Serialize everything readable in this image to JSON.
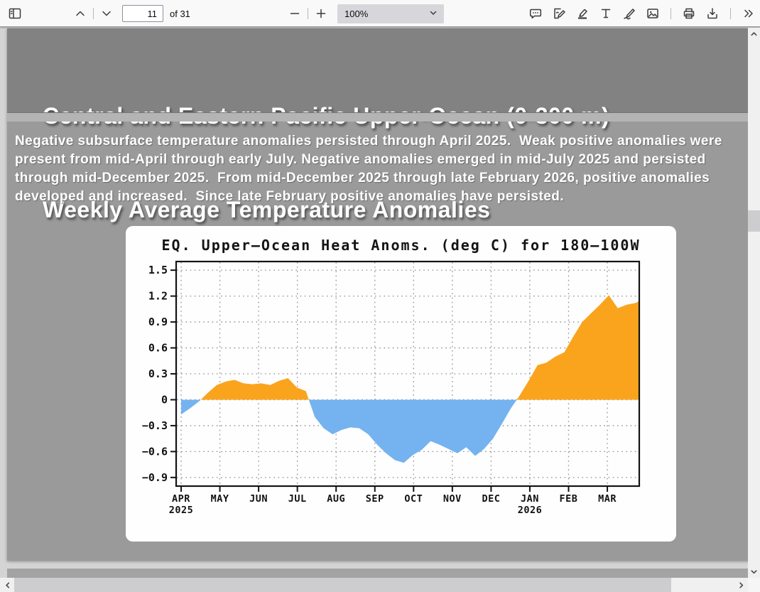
{
  "toolbar": {
    "page_input_value": "11",
    "page_count_label": "of 31",
    "zoom_value": "100%"
  },
  "slide": {
    "title_line1": "Central and Eastern Pacific Upper-Ocean (0-300 m)",
    "title_line2": "Weekly Average Temperature Anomalies",
    "paragraph_lines": [
      "Negative subsurface temperature anomalies persisted through April 2025.  Weak positive anomalies were",
      "present from mid-April through early July. Negative anomalies emerged in mid-July 2025 and persisted",
      "through mid-December 2025.  From mid-December 2025 through late February 2026, positive anomalies",
      "developed and increased.  Since late February positive anomalies have persisted."
    ]
  },
  "chart_data": {
    "type": "area",
    "title": "EQ. Upper–Ocean Heat Anoms. (deg C) for 180–100W",
    "xlabel": "",
    "ylabel": "deg C",
    "ylim": [
      -1.0,
      1.6
    ],
    "grid": "dotted",
    "positive_color": "#FAA41E",
    "negative_color": "#74B3F0",
    "x_months": [
      "APR",
      "MAY",
      "JUN",
      "JUL",
      "AUG",
      "SEP",
      "OCT",
      "NOV",
      "DEC",
      "JAN",
      "FEB",
      "MAR"
    ],
    "x_years": [
      {
        "month_index": 0,
        "label": "2025"
      },
      {
        "month_index": 9,
        "label": "2026"
      }
    ],
    "y_ticks": [
      {
        "v": 1.5,
        "label": "1.5"
      },
      {
        "v": 1.2,
        "label": "1.2"
      },
      {
        "v": 0.9,
        "label": "0.9"
      },
      {
        "v": 0.6,
        "label": "0.6"
      },
      {
        "v": 0.3,
        "label": "0.3"
      },
      {
        "v": 0,
        "label": "0"
      },
      {
        "v": -0.3,
        "label": "−0.3"
      },
      {
        "v": -0.6,
        "label": "−0.6"
      },
      {
        "v": -0.9,
        "label": "−0.9"
      }
    ],
    "series": [
      {
        "name": "weekly upper-ocean heat anomaly",
        "x_weeks": [
          0,
          1,
          2,
          3,
          4,
          5,
          6,
          7,
          8,
          9,
          10,
          11,
          12,
          13,
          14,
          15,
          16,
          17,
          18,
          19,
          20,
          21,
          22,
          23,
          24,
          25,
          26,
          27,
          28,
          29,
          30,
          31,
          32,
          33,
          34,
          35,
          36,
          37,
          38,
          39,
          40,
          41,
          42,
          43,
          44,
          45,
          46,
          47,
          48,
          49,
          50,
          51,
          51.8
        ],
        "values": [
          -0.17,
          -0.1,
          -0.02,
          0.08,
          0.17,
          0.21,
          0.23,
          0.19,
          0.18,
          0.19,
          0.17,
          0.22,
          0.25,
          0.14,
          0.1,
          -0.2,
          -0.33,
          -0.4,
          -0.35,
          -0.32,
          -0.33,
          -0.4,
          -0.52,
          -0.62,
          -0.7,
          -0.73,
          -0.64,
          -0.58,
          -0.48,
          -0.52,
          -0.57,
          -0.62,
          -0.55,
          -0.65,
          -0.57,
          -0.45,
          -0.28,
          -0.1,
          0.05,
          0.22,
          0.4,
          0.43,
          0.5,
          0.55,
          0.73,
          0.9,
          1.0,
          1.1,
          1.21,
          1.06,
          1.1,
          1.12,
          1.16
        ]
      }
    ]
  },
  "colors": {
    "slide_header_gray": "#828282",
    "slide_body_gray": "#9a9a9a",
    "chart_positive_orange": "#FAA41E",
    "chart_negative_blue": "#74B3F0"
  }
}
